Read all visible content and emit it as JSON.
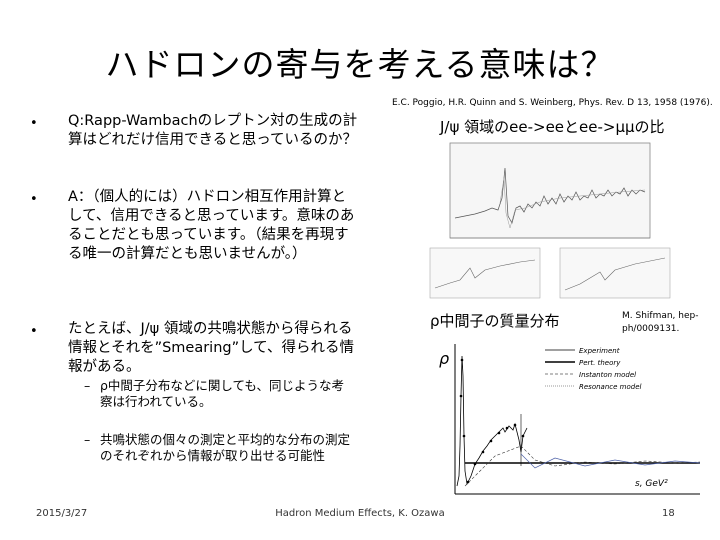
{
  "slide": {
    "title": "ハドロンの寄与を考える意味は？",
    "bullets": [
      {
        "marker": "•",
        "text": "Q:Rapp-Wambachのレプトン対の生成の計算はどれだけ信用できると思っているのか？"
      },
      {
        "marker": "•",
        "text": "A：（個人的には）ハドロン相互作用計算として、信用できると思っています。意味のあることだとも思っています。（結果を再現する唯一の計算だとも思いませんが。）"
      },
      {
        "marker": "•",
        "text": "たとえば、J/ψ 領域の共鳴状態から得られる情報とそれを”Smearing”して、得られる情報がある。"
      }
    ],
    "sub_bullets": [
      {
        "marker": "–",
        "text": "ρ中間子分布などに関しても、同じような考察は行われている。"
      },
      {
        "marker": "–",
        "text": "共鳴状態の個々の測定と平均的な分布の測定のそれぞれから情報が取り出せる可能性"
      }
    ]
  },
  "figures": {
    "top": {
      "reference": "E.C. Poggio, H.R. Quinn and S. Weinberg, Phys. Rev. D 13, 1958 (1976).",
      "caption": "J/ψ 領域のee->eeとee->μμの比"
    },
    "bottom": {
      "caption": "ρ中間子の質量分布",
      "reference": "M. Shifman, hep-ph/0009131.",
      "y_label": "ρ",
      "x_label": "s, GeV²",
      "legend": [
        "Experiment",
        "Pert. theory",
        "Instanton model",
        "Resonance model"
      ]
    }
  },
  "footer": {
    "date": "2015/3/27",
    "center": "Hadron Medium Effects, K. Ozawa",
    "page": "18"
  }
}
